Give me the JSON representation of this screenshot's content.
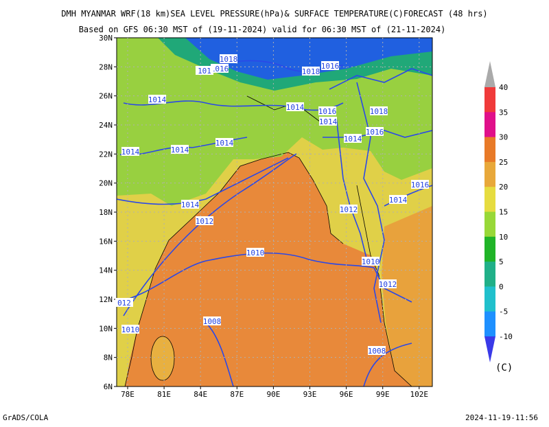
{
  "header": {
    "title": "DMH MYANMAR WRF(18 km)SEA LEVEL PRESSURE(hPa)& SURFACE TEMPERATURE(C)FORECAST (48 hrs)",
    "subtitle": "Based on GFS 06:30 MST of (19-11-2024) valid for 06:30 MST of (21-11-2024)"
  },
  "map": {
    "lat_labels": [
      "30N",
      "28N",
      "26N",
      "24N",
      "22N",
      "20N",
      "18N",
      "16N",
      "14N",
      "12N",
      "10N",
      "8N",
      "6N"
    ],
    "lon_labels": [
      "78E",
      "81E",
      "84E",
      "87E",
      "90E",
      "93E",
      "96E",
      "99E",
      "102E"
    ],
    "isobar_labels": [
      "1018",
      "1016",
      "101",
      "1018",
      "1016",
      "1014",
      "1014",
      "1016",
      "1018",
      "1014",
      "1016",
      "1014",
      "1014",
      "1014",
      "1014",
      "1016",
      "1014",
      "1014",
      "1012",
      "1012",
      "1010",
      "1010",
      "1012",
      "012",
      "1010",
      "1008",
      "1008"
    ]
  },
  "colorbar": {
    "labels": [
      "40",
      "35",
      "30",
      "25",
      "20",
      "15",
      "10",
      "5",
      "0",
      "-5",
      "-10"
    ],
    "unit": "(C)"
  },
  "footer": {
    "left": "GrADS/COLA",
    "right": "2024-11-19-11:56"
  }
}
